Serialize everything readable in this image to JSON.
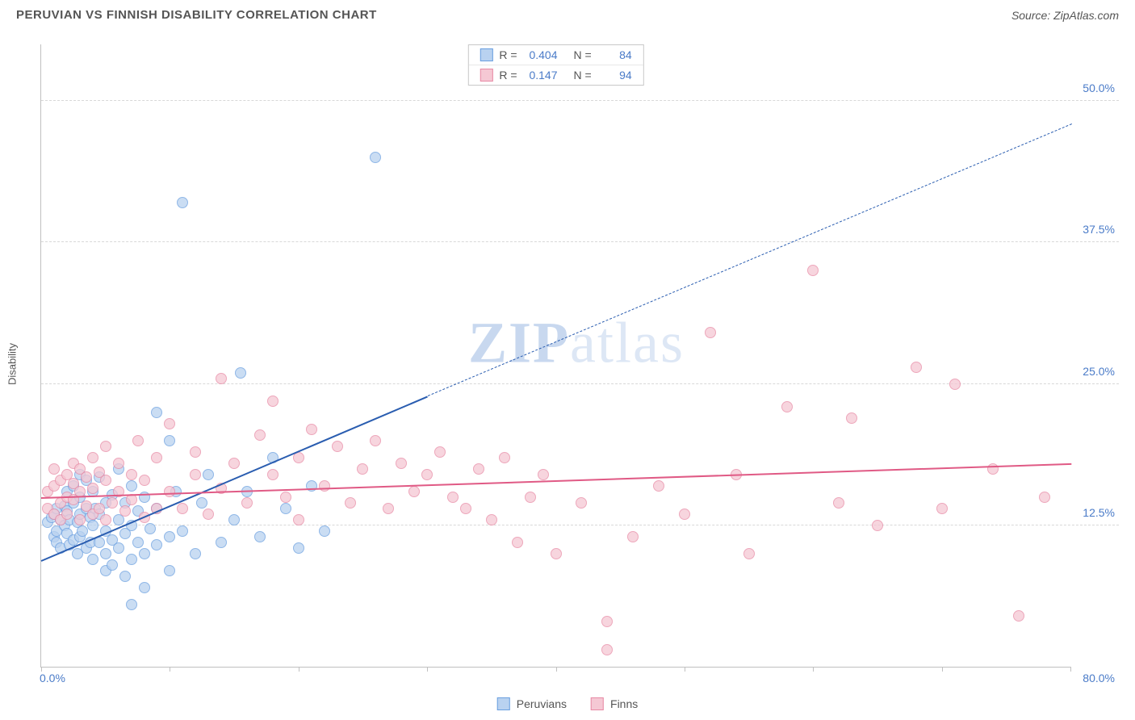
{
  "header": {
    "title": "PERUVIAN VS FINNISH DISABILITY CORRELATION CHART",
    "source": "Source: ZipAtlas.com"
  },
  "watermark": {
    "bold": "ZIP",
    "rest": "atlas"
  },
  "chart": {
    "type": "scatter",
    "y_axis_label": "Disability",
    "xlim": [
      0,
      80
    ],
    "ylim": [
      0,
      55
    ],
    "x_ticks": [
      0,
      10,
      20,
      30,
      40,
      50,
      60,
      70,
      80
    ],
    "y_gridlines": [
      12.5,
      25.0,
      37.5,
      50.0
    ],
    "y_tick_labels": [
      "12.5%",
      "25.0%",
      "37.5%",
      "50.0%"
    ],
    "x_origin_label": "0.0%",
    "x_max_label": "80.0%",
    "background_color": "#ffffff",
    "grid_color": "#d8d8d8",
    "axis_color": "#c0c0c0",
    "tick_label_color": "#4a7bc8",
    "marker_radius": 7,
    "series": [
      {
        "name": "Peruvians",
        "fill": "#b9d2f0",
        "stroke": "#6a9fe0",
        "opacity": 0.75,
        "trend": {
          "color": "#2a5db0",
          "solid": {
            "x1": 0,
            "y1": 9.5,
            "x2": 30,
            "y2": 24.0
          },
          "dashed": {
            "x1": 30,
            "y1": 24.0,
            "x2": 80,
            "y2": 48.0
          }
        },
        "stats": {
          "R": "0.404",
          "N": "84"
        },
        "points": [
          [
            0.5,
            12.8
          ],
          [
            0.8,
            13.2
          ],
          [
            1.0,
            11.5
          ],
          [
            1.0,
            13.5
          ],
          [
            1.2,
            12.0
          ],
          [
            1.2,
            14.0
          ],
          [
            1.2,
            11.0
          ],
          [
            1.5,
            13.0
          ],
          [
            1.5,
            10.5
          ],
          [
            1.8,
            12.5
          ],
          [
            1.8,
            14.2
          ],
          [
            2.0,
            11.8
          ],
          [
            2.0,
            13.8
          ],
          [
            2.0,
            15.5
          ],
          [
            2.2,
            10.8
          ],
          [
            2.2,
            13.0
          ],
          [
            2.5,
            14.5
          ],
          [
            2.5,
            11.2
          ],
          [
            2.5,
            16.0
          ],
          [
            2.8,
            12.8
          ],
          [
            2.8,
            10.0
          ],
          [
            3.0,
            13.5
          ],
          [
            3.0,
            15.0
          ],
          [
            3.0,
            11.5
          ],
          [
            3.0,
            17.0
          ],
          [
            3.2,
            12.0
          ],
          [
            3.5,
            14.0
          ],
          [
            3.5,
            10.5
          ],
          [
            3.5,
            16.5
          ],
          [
            3.8,
            13.2
          ],
          [
            3.8,
            11.0
          ],
          [
            4.0,
            15.5
          ],
          [
            4.0,
            12.5
          ],
          [
            4.0,
            9.5
          ],
          [
            4.2,
            14.0
          ],
          [
            4.5,
            11.0
          ],
          [
            4.5,
            13.5
          ],
          [
            4.5,
            16.8
          ],
          [
            5.0,
            12.0
          ],
          [
            5.0,
            10.0
          ],
          [
            5.0,
            14.5
          ],
          [
            5.0,
            8.5
          ],
          [
            5.5,
            11.2
          ],
          [
            5.5,
            15.2
          ],
          [
            5.5,
            9.0
          ],
          [
            6.0,
            13.0
          ],
          [
            6.0,
            10.5
          ],
          [
            6.0,
            17.5
          ],
          [
            6.5,
            11.8
          ],
          [
            6.5,
            8.0
          ],
          [
            6.5,
            14.5
          ],
          [
            7.0,
            12.5
          ],
          [
            7.0,
            9.5
          ],
          [
            7.0,
            16.0
          ],
          [
            7.0,
            5.5
          ],
          [
            7.5,
            11.0
          ],
          [
            7.5,
            13.8
          ],
          [
            8.0,
            10.0
          ],
          [
            8.0,
            15.0
          ],
          [
            8.0,
            7.0
          ],
          [
            8.5,
            12.2
          ],
          [
            9.0,
            22.5
          ],
          [
            9.0,
            10.8
          ],
          [
            9.0,
            14.0
          ],
          [
            10.0,
            20.0
          ],
          [
            10.0,
            11.5
          ],
          [
            10.0,
            8.5
          ],
          [
            10.5,
            15.5
          ],
          [
            11.0,
            41.0
          ],
          [
            11.0,
            12.0
          ],
          [
            12.0,
            10.0
          ],
          [
            12.5,
            14.5
          ],
          [
            13.0,
            17.0
          ],
          [
            14.0,
            11.0
          ],
          [
            15.0,
            13.0
          ],
          [
            15.5,
            26.0
          ],
          [
            16.0,
            15.5
          ],
          [
            17.0,
            11.5
          ],
          [
            18.0,
            18.5
          ],
          [
            19.0,
            14.0
          ],
          [
            20.0,
            10.5
          ],
          [
            21.0,
            16.0
          ],
          [
            22.0,
            12.0
          ],
          [
            26.0,
            45.0
          ]
        ]
      },
      {
        "name": "Finns",
        "fill": "#f5c8d4",
        "stroke": "#e88aa5",
        "opacity": 0.75,
        "trend": {
          "color": "#e05a85",
          "solid": {
            "x1": 0,
            "y1": 15.0,
            "x2": 80,
            "y2": 18.0
          },
          "dashed": null
        },
        "stats": {
          "R": "0.147",
          "N": "94"
        },
        "points": [
          [
            0.5,
            14.0
          ],
          [
            0.5,
            15.5
          ],
          [
            1.0,
            13.5
          ],
          [
            1.0,
            16.0
          ],
          [
            1.0,
            17.5
          ],
          [
            1.5,
            14.5
          ],
          [
            1.5,
            16.5
          ],
          [
            1.5,
            13.0
          ],
          [
            2.0,
            15.0
          ],
          [
            2.0,
            17.0
          ],
          [
            2.0,
            13.5
          ],
          [
            2.5,
            14.8
          ],
          [
            2.5,
            16.2
          ],
          [
            2.5,
            18.0
          ],
          [
            3.0,
            13.0
          ],
          [
            3.0,
            15.5
          ],
          [
            3.0,
            17.5
          ],
          [
            3.5,
            14.2
          ],
          [
            3.5,
            16.8
          ],
          [
            4.0,
            13.5
          ],
          [
            4.0,
            15.8
          ],
          [
            4.0,
            18.5
          ],
          [
            4.5,
            14.0
          ],
          [
            4.5,
            17.2
          ],
          [
            5.0,
            13.0
          ],
          [
            5.0,
            16.5
          ],
          [
            5.0,
            19.5
          ],
          [
            5.5,
            14.5
          ],
          [
            6.0,
            15.5
          ],
          [
            6.0,
            18.0
          ],
          [
            6.5,
            13.8
          ],
          [
            7.0,
            17.0
          ],
          [
            7.0,
            14.8
          ],
          [
            7.5,
            20.0
          ],
          [
            8.0,
            13.2
          ],
          [
            8.0,
            16.5
          ],
          [
            9.0,
            14.0
          ],
          [
            9.0,
            18.5
          ],
          [
            10.0,
            15.5
          ],
          [
            10.0,
            21.5
          ],
          [
            11.0,
            14.0
          ],
          [
            12.0,
            17.0
          ],
          [
            12.0,
            19.0
          ],
          [
            13.0,
            13.5
          ],
          [
            14.0,
            15.8
          ],
          [
            14.0,
            25.5
          ],
          [
            15.0,
            18.0
          ],
          [
            16.0,
            14.5
          ],
          [
            17.0,
            20.5
          ],
          [
            18.0,
            17.0
          ],
          [
            18.0,
            23.5
          ],
          [
            19.0,
            15.0
          ],
          [
            20.0,
            18.5
          ],
          [
            20.0,
            13.0
          ],
          [
            21.0,
            21.0
          ],
          [
            22.0,
            16.0
          ],
          [
            23.0,
            19.5
          ],
          [
            24.0,
            14.5
          ],
          [
            25.0,
            17.5
          ],
          [
            26.0,
            20.0
          ],
          [
            27.0,
            14.0
          ],
          [
            28.0,
            18.0
          ],
          [
            29.0,
            15.5
          ],
          [
            30.0,
            17.0
          ],
          [
            31.0,
            19.0
          ],
          [
            32.0,
            15.0
          ],
          [
            33.0,
            14.0
          ],
          [
            34.0,
            17.5
          ],
          [
            35.0,
            13.0
          ],
          [
            36.0,
            18.5
          ],
          [
            37.0,
            11.0
          ],
          [
            38.0,
            15.0
          ],
          [
            39.0,
            17.0
          ],
          [
            40.0,
            10.0
          ],
          [
            42.0,
            14.5
          ],
          [
            44.0,
            4.0
          ],
          [
            44.0,
            1.5
          ],
          [
            46.0,
            11.5
          ],
          [
            48.0,
            16.0
          ],
          [
            50.0,
            13.5
          ],
          [
            52.0,
            29.5
          ],
          [
            54.0,
            17.0
          ],
          [
            55.0,
            10.0
          ],
          [
            58.0,
            23.0
          ],
          [
            60.0,
            35.0
          ],
          [
            62.0,
            14.5
          ],
          [
            63.0,
            22.0
          ],
          [
            65.0,
            12.5
          ],
          [
            68.0,
            26.5
          ],
          [
            70.0,
            14.0
          ],
          [
            71.0,
            25.0
          ],
          [
            74.0,
            17.5
          ],
          [
            76.0,
            4.5
          ],
          [
            78.0,
            15.0
          ]
        ]
      }
    ]
  },
  "bottom_legend": [
    {
      "label": "Peruvians",
      "fill": "#b9d2f0",
      "stroke": "#6a9fe0"
    },
    {
      "label": "Finns",
      "fill": "#f5c8d4",
      "stroke": "#e88aa5"
    }
  ]
}
